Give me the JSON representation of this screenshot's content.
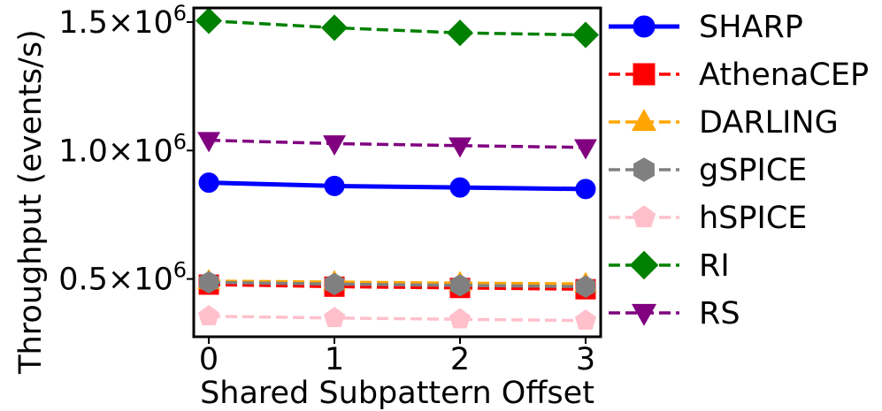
{
  "chart_data": {
    "type": "line",
    "xlabel": "Shared Subpattern Offset",
    "ylabel": "Throughput (events/s)",
    "x": [
      0,
      1,
      2,
      3
    ],
    "x_ticks": [
      "0",
      "1",
      "2",
      "3"
    ],
    "xlim": [
      -0.12,
      3.12
    ],
    "ylim": [
      275000,
      1555000
    ],
    "y_ticks": [
      {
        "value": 500000,
        "base": "0.5×10",
        "exp": "6"
      },
      {
        "value": 1000000,
        "base": "1.0×10",
        "exp": "6"
      },
      {
        "value": 1500000,
        "base": "1.5×10",
        "exp": "6"
      }
    ],
    "grid": false,
    "legend_position": "outside-right",
    "series": [
      {
        "name": "SHARP",
        "color": "#0000ff",
        "linestyle": "solid",
        "marker": "circle",
        "values": [
          875000,
          862000,
          856000,
          850000
        ]
      },
      {
        "name": "AthenaCEP",
        "color": "#ff0000",
        "linestyle": "dashed",
        "marker": "square",
        "values": [
          478000,
          470000,
          465000,
          460000
        ]
      },
      {
        "name": "DARLING",
        "color": "#ffa500",
        "linestyle": "dashed",
        "marker": "triangle-up",
        "values": [
          492000,
          488000,
          484000,
          481000
        ]
      },
      {
        "name": "gSPICE",
        "color": "#808080",
        "linestyle": "dashed",
        "marker": "hexagon",
        "values": [
          487000,
          480000,
          475000,
          470000
        ]
      },
      {
        "name": "hSPICE",
        "color": "#ffc0cb",
        "linestyle": "dashed",
        "marker": "pentagon",
        "values": [
          355000,
          348000,
          343000,
          338000
        ]
      },
      {
        "name": "RI",
        "color": "#008000",
        "linestyle": "dashed",
        "marker": "diamond",
        "values": [
          1505000,
          1478000,
          1458000,
          1450000
        ]
      },
      {
        "name": "RS",
        "color": "#800080",
        "linestyle": "dashed",
        "marker": "triangle-down",
        "values": [
          1040000,
          1027000,
          1019000,
          1012000
        ]
      }
    ]
  }
}
